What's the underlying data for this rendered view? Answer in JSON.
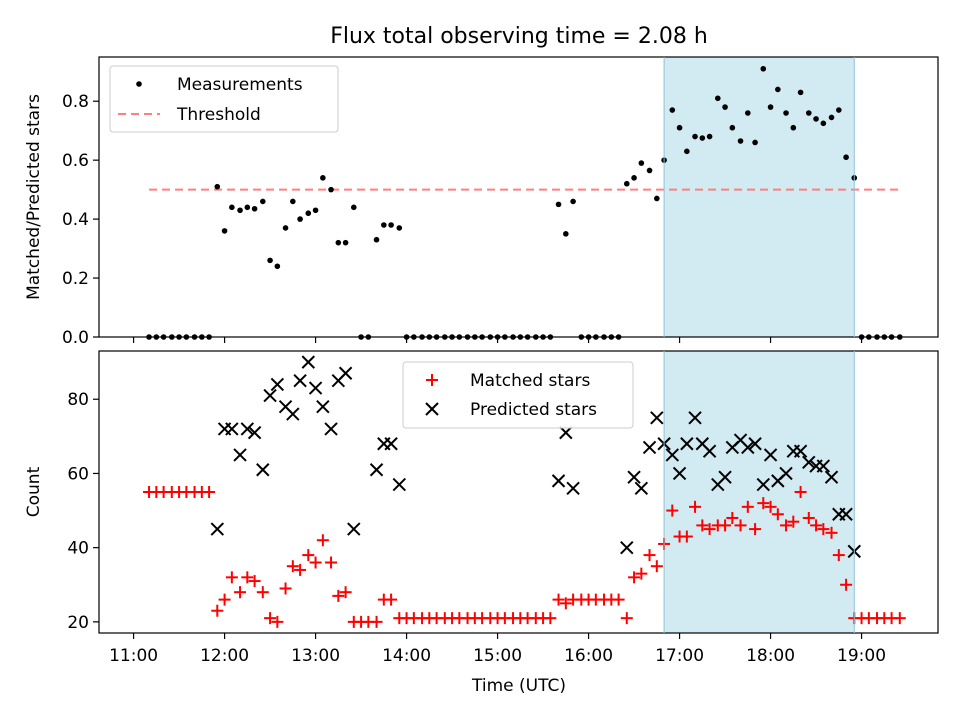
{
  "chart_data": [
    {
      "type": "scatter",
      "title": "Flux total observing time = 2.08 h",
      "xlabel": "",
      "ylabel": "Matched/Predicted stars",
      "xlim": [
        10.62,
        19.84
      ],
      "ylim": [
        0,
        0.95
      ],
      "yticks": [
        0.0,
        0.2,
        0.4,
        0.6,
        0.8
      ],
      "ytick_labels": [
        "0.0",
        "0.2",
        "0.4",
        "0.6",
        "0.8"
      ],
      "xticks": [
        11,
        12,
        13,
        14,
        15,
        16,
        17,
        18,
        19
      ],
      "shaded_region": {
        "x": [
          16.83,
          18.92
        ],
        "color": "#add8e6"
      },
      "legend": {
        "placement": "upper left",
        "entries": [
          "Measurements",
          "Threshold"
        ]
      },
      "series": [
        {
          "name": "Measurements",
          "marker": "dot",
          "color": "#000000",
          "points": [
            [
              11.17,
              0
            ],
            [
              11.25,
              0
            ],
            [
              11.33,
              0
            ],
            [
              11.42,
              0
            ],
            [
              11.5,
              0
            ],
            [
              11.58,
              0
            ],
            [
              11.67,
              0
            ],
            [
              11.75,
              0
            ],
            [
              11.83,
              0
            ],
            [
              11.92,
              0.51
            ],
            [
              12.0,
              0.36
            ],
            [
              12.08,
              0.44
            ],
            [
              12.17,
              0.43
            ],
            [
              12.25,
              0.44
            ],
            [
              12.33,
              0.435
            ],
            [
              12.42,
              0.46
            ],
            [
              12.5,
              0.26
            ],
            [
              12.58,
              0.24
            ],
            [
              12.67,
              0.37
            ],
            [
              12.75,
              0.46
            ],
            [
              12.83,
              0.4
            ],
            [
              12.92,
              0.42
            ],
            [
              13.0,
              0.43
            ],
            [
              13.08,
              0.54
            ],
            [
              13.17,
              0.5
            ],
            [
              13.25,
              0.32
            ],
            [
              13.33,
              0.32
            ],
            [
              13.42,
              0.44
            ],
            [
              13.5,
              0
            ],
            [
              13.58,
              0
            ],
            [
              13.67,
              0.33
            ],
            [
              13.75,
              0.38
            ],
            [
              13.83,
              0.38
            ],
            [
              13.92,
              0.37
            ],
            [
              14.0,
              0
            ],
            [
              14.08,
              0
            ],
            [
              14.17,
              0
            ],
            [
              14.25,
              0
            ],
            [
              14.33,
              0
            ],
            [
              14.42,
              0
            ],
            [
              14.5,
              0
            ],
            [
              14.58,
              0
            ],
            [
              14.67,
              0
            ],
            [
              14.75,
              0
            ],
            [
              14.83,
              0
            ],
            [
              14.92,
              0
            ],
            [
              15.0,
              0
            ],
            [
              15.08,
              0
            ],
            [
              15.17,
              0
            ],
            [
              15.25,
              0
            ],
            [
              15.33,
              0
            ],
            [
              15.42,
              0
            ],
            [
              15.5,
              0
            ],
            [
              15.58,
              0
            ],
            [
              15.67,
              0.45
            ],
            [
              15.75,
              0.35
            ],
            [
              15.83,
              0.46
            ],
            [
              15.92,
              0
            ],
            [
              16.0,
              0
            ],
            [
              16.08,
              0
            ],
            [
              16.17,
              0
            ],
            [
              16.25,
              0
            ],
            [
              16.33,
              0
            ],
            [
              16.42,
              0.52
            ],
            [
              16.5,
              0.54
            ],
            [
              16.58,
              0.59
            ],
            [
              16.67,
              0.565
            ],
            [
              16.75,
              0.47
            ],
            [
              16.83,
              0.6
            ],
            [
              16.92,
              0.77
            ],
            [
              17.0,
              0.71
            ],
            [
              17.08,
              0.63
            ],
            [
              17.17,
              0.68
            ],
            [
              17.25,
              0.675
            ],
            [
              17.33,
              0.68
            ],
            [
              17.42,
              0.81
            ],
            [
              17.5,
              0.78
            ],
            [
              17.58,
              0.71
            ],
            [
              17.67,
              0.665
            ],
            [
              17.75,
              0.76
            ],
            [
              17.83,
              0.66
            ],
            [
              17.92,
              0.91
            ],
            [
              18.0,
              0.78
            ],
            [
              18.08,
              0.84
            ],
            [
              18.17,
              0.76
            ],
            [
              18.25,
              0.71
            ],
            [
              18.33,
              0.83
            ],
            [
              18.42,
              0.76
            ],
            [
              18.5,
              0.74
            ],
            [
              18.58,
              0.725
            ],
            [
              18.67,
              0.745
            ],
            [
              18.75,
              0.77
            ],
            [
              18.83,
              0.61
            ],
            [
              18.92,
              0.54
            ],
            [
              19.0,
              0
            ],
            [
              19.08,
              0
            ],
            [
              19.17,
              0
            ],
            [
              19.25,
              0
            ],
            [
              19.33,
              0
            ],
            [
              19.42,
              0
            ]
          ]
        },
        {
          "name": "Threshold",
          "marker": "dashed-line",
          "color": "#ff7f7f",
          "points": [
            [
              11.17,
              0.5
            ],
            [
              19.42,
              0.5
            ]
          ]
        }
      ]
    },
    {
      "type": "scatter",
      "title": "",
      "xlabel": "Time (UTC)",
      "ylabel": "Count",
      "xlim": [
        10.62,
        19.84
      ],
      "ylim": [
        17,
        93
      ],
      "yticks": [
        20,
        40,
        60,
        80
      ],
      "ytick_labels": [
        "20",
        "40",
        "60",
        "80"
      ],
      "xticks": [
        11,
        12,
        13,
        14,
        15,
        16,
        17,
        18,
        19
      ],
      "xtick_labels": [
        "11:00",
        "12:00",
        "13:00",
        "14:00",
        "15:00",
        "16:00",
        "17:00",
        "18:00",
        "19:00"
      ],
      "shaded_region": {
        "x": [
          16.83,
          18.92
        ],
        "color": "#add8e6"
      },
      "legend": {
        "placement": "upper center",
        "entries": [
          "Matched stars",
          "Predicted stars"
        ]
      },
      "series": [
        {
          "name": "Matched stars",
          "marker": "plus",
          "color": "#ff0000",
          "points": [
            [
              11.17,
              55
            ],
            [
              11.25,
              55
            ],
            [
              11.33,
              55
            ],
            [
              11.42,
              55
            ],
            [
              11.5,
              55
            ],
            [
              11.58,
              55
            ],
            [
              11.67,
              55
            ],
            [
              11.75,
              55
            ],
            [
              11.83,
              55
            ],
            [
              11.92,
              23
            ],
            [
              12.0,
              26
            ],
            [
              12.08,
              32
            ],
            [
              12.17,
              28
            ],
            [
              12.25,
              32
            ],
            [
              12.33,
              31
            ],
            [
              12.42,
              28
            ],
            [
              12.5,
              21
            ],
            [
              12.58,
              20
            ],
            [
              12.67,
              29
            ],
            [
              12.75,
              35
            ],
            [
              12.83,
              34
            ],
            [
              12.92,
              38
            ],
            [
              13.0,
              36
            ],
            [
              13.08,
              42
            ],
            [
              13.17,
              36
            ],
            [
              13.25,
              27
            ],
            [
              13.33,
              28
            ],
            [
              13.42,
              20
            ],
            [
              13.5,
              20
            ],
            [
              13.58,
              20
            ],
            [
              13.67,
              20
            ],
            [
              13.75,
              26
            ],
            [
              13.83,
              26
            ],
            [
              13.92,
              21
            ],
            [
              14.0,
              21
            ],
            [
              14.08,
              21
            ],
            [
              14.17,
              21
            ],
            [
              14.25,
              21
            ],
            [
              14.33,
              21
            ],
            [
              14.42,
              21
            ],
            [
              14.5,
              21
            ],
            [
              14.58,
              21
            ],
            [
              14.67,
              21
            ],
            [
              14.75,
              21
            ],
            [
              14.83,
              21
            ],
            [
              14.92,
              21
            ],
            [
              15.0,
              21
            ],
            [
              15.08,
              21
            ],
            [
              15.17,
              21
            ],
            [
              15.25,
              21
            ],
            [
              15.33,
              21
            ],
            [
              15.42,
              21
            ],
            [
              15.5,
              21
            ],
            [
              15.58,
              21
            ],
            [
              15.67,
              26
            ],
            [
              15.75,
              25
            ],
            [
              15.83,
              26
            ],
            [
              15.92,
              26
            ],
            [
              16.0,
              26
            ],
            [
              16.08,
              26
            ],
            [
              16.17,
              26
            ],
            [
              16.25,
              26
            ],
            [
              16.33,
              26
            ],
            [
              16.42,
              21
            ],
            [
              16.5,
              32
            ],
            [
              16.58,
              33
            ],
            [
              16.67,
              38
            ],
            [
              16.75,
              35
            ],
            [
              16.83,
              41
            ],
            [
              16.92,
              50
            ],
            [
              17.0,
              43
            ],
            [
              17.08,
              43
            ],
            [
              17.17,
              51
            ],
            [
              17.25,
              46
            ],
            [
              17.33,
              45
            ],
            [
              17.42,
              46
            ],
            [
              17.5,
              46
            ],
            [
              17.58,
              48
            ],
            [
              17.67,
              46
            ],
            [
              17.75,
              51
            ],
            [
              17.83,
              45
            ],
            [
              17.92,
              52
            ],
            [
              18.0,
              51
            ],
            [
              18.08,
              49
            ],
            [
              18.17,
              46
            ],
            [
              18.25,
              47
            ],
            [
              18.33,
              55
            ],
            [
              18.42,
              48
            ],
            [
              18.5,
              46
            ],
            [
              18.58,
              45
            ],
            [
              18.67,
              44
            ],
            [
              18.75,
              38
            ],
            [
              18.83,
              30
            ],
            [
              18.92,
              21
            ],
            [
              19.0,
              21
            ],
            [
              19.08,
              21
            ],
            [
              19.17,
              21
            ],
            [
              19.25,
              21
            ],
            [
              19.33,
              21
            ],
            [
              19.42,
              21
            ]
          ]
        },
        {
          "name": "Predicted stars",
          "marker": "x",
          "color": "#000000",
          "points": [
            [
              11.92,
              45
            ],
            [
              12.0,
              72
            ],
            [
              12.08,
              72
            ],
            [
              12.17,
              65
            ],
            [
              12.25,
              72
            ],
            [
              12.33,
              71
            ],
            [
              12.42,
              61
            ],
            [
              12.5,
              81
            ],
            [
              12.58,
              84
            ],
            [
              12.67,
              78
            ],
            [
              12.75,
              76
            ],
            [
              12.83,
              85
            ],
            [
              12.92,
              90
            ],
            [
              13.0,
              83
            ],
            [
              13.08,
              78
            ],
            [
              13.17,
              72
            ],
            [
              13.25,
              85
            ],
            [
              13.33,
              87
            ],
            [
              13.42,
              45
            ],
            [
              13.67,
              61
            ],
            [
              13.75,
              68
            ],
            [
              13.83,
              68
            ],
            [
              13.92,
              57
            ],
            [
              15.67,
              58
            ],
            [
              15.75,
              71
            ],
            [
              15.83,
              56
            ],
            [
              16.42,
              40
            ],
            [
              16.5,
              59
            ],
            [
              16.58,
              56
            ],
            [
              16.67,
              67
            ],
            [
              16.75,
              75
            ],
            [
              16.83,
              68
            ],
            [
              16.92,
              65
            ],
            [
              17.0,
              60
            ],
            [
              17.08,
              68
            ],
            [
              17.17,
              75
            ],
            [
              17.25,
              68
            ],
            [
              17.33,
              66
            ],
            [
              17.42,
              57
            ],
            [
              17.5,
              59
            ],
            [
              17.58,
              67
            ],
            [
              17.67,
              69
            ],
            [
              17.75,
              67
            ],
            [
              17.83,
              68
            ],
            [
              17.92,
              57
            ],
            [
              18.0,
              65
            ],
            [
              18.08,
              58
            ],
            [
              18.17,
              60
            ],
            [
              18.25,
              66
            ],
            [
              18.33,
              66
            ],
            [
              18.42,
              63
            ],
            [
              18.5,
              62
            ],
            [
              18.58,
              62
            ],
            [
              18.67,
              59
            ],
            [
              18.75,
              49
            ],
            [
              18.83,
              49
            ],
            [
              18.92,
              39
            ]
          ]
        }
      ]
    }
  ]
}
